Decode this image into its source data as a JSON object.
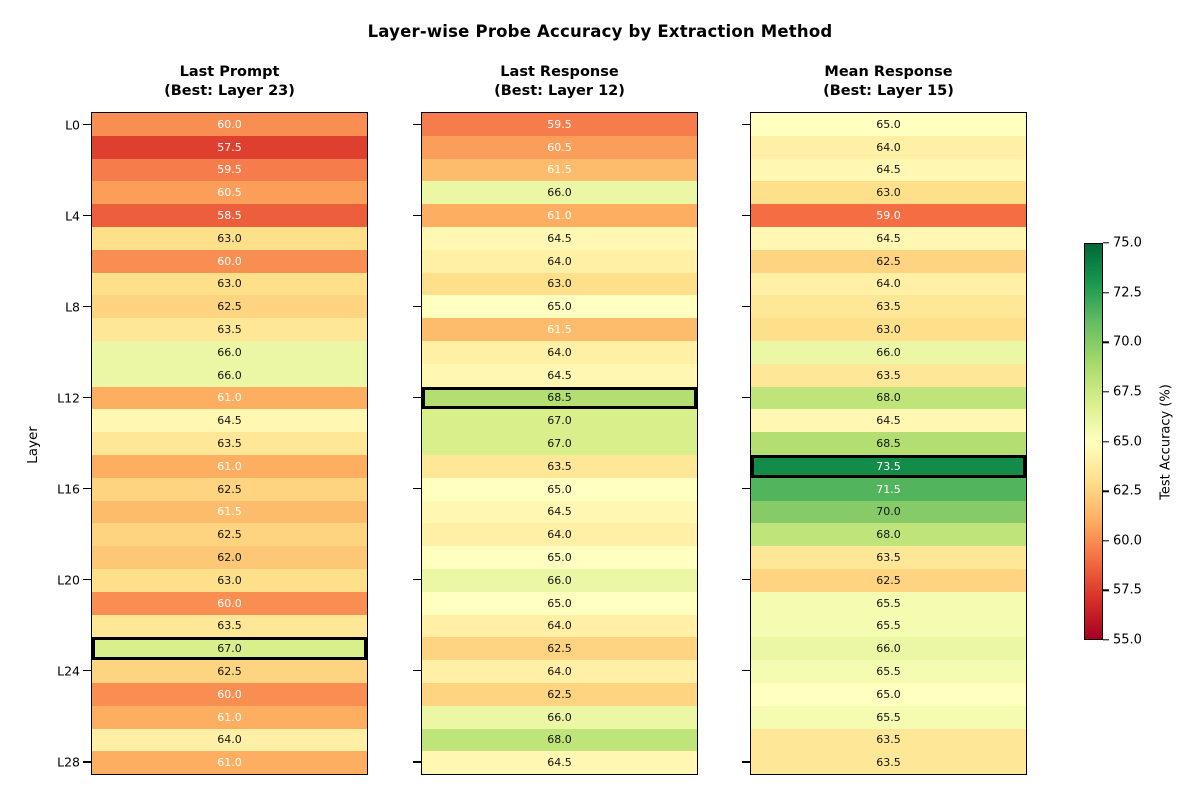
{
  "chart_data": {
    "type": "heatmap",
    "title": "Layer-wise Probe Accuracy by Extraction Method",
    "ylabel": "Layer",
    "vmin": 55.0,
    "vmax": 75.0,
    "n_layers": 29,
    "colormap": "RdYlGn",
    "colormap_stops": [
      {
        "t": 0.0,
        "color": "#a50026"
      },
      {
        "t": 0.1,
        "color": "#d73027"
      },
      {
        "t": 0.2,
        "color": "#f46d43"
      },
      {
        "t": 0.3,
        "color": "#fdae61"
      },
      {
        "t": 0.4,
        "color": "#fee08b"
      },
      {
        "t": 0.5,
        "color": "#ffffbf"
      },
      {
        "t": 0.6,
        "color": "#d9ef8b"
      },
      {
        "t": 0.7,
        "color": "#a6d96a"
      },
      {
        "t": 0.8,
        "color": "#66bd63"
      },
      {
        "t": 0.9,
        "color": "#1a9850"
      },
      {
        "t": 1.0,
        "color": "#006837"
      }
    ],
    "highlight_border_color": "#000000",
    "yticks": {
      "rows": [
        0,
        4,
        8,
        12,
        16,
        20,
        24,
        28
      ],
      "labels": [
        "L0",
        "L4",
        "L8",
        "L12",
        "L16",
        "L20",
        "L24",
        "L28"
      ]
    },
    "colorbar": {
      "label": "Test Accuracy (%)",
      "ticks": [
        75.0,
        72.5,
        70.0,
        67.5,
        65.0,
        62.5,
        60.0,
        57.5,
        55.0
      ]
    },
    "columns": [
      {
        "title": "Last Prompt",
        "subtitle": "(Best: Layer 23)",
        "best_layer": 23,
        "values": [
          60.0,
          57.5,
          59.5,
          60.5,
          58.5,
          63.0,
          60.0,
          63.0,
          62.5,
          63.5,
          66.0,
          66.0,
          61.0,
          64.5,
          63.5,
          61.0,
          62.5,
          61.5,
          62.5,
          62.0,
          63.0,
          60.0,
          63.5,
          67.0,
          62.5,
          60.0,
          61.0,
          64.0,
          61.0
        ]
      },
      {
        "title": "Last Response",
        "subtitle": "(Best: Layer 12)",
        "best_layer": 12,
        "values": [
          59.5,
          60.5,
          61.5,
          66.0,
          61.0,
          64.5,
          64.0,
          63.0,
          65.0,
          61.5,
          64.0,
          64.5,
          68.5,
          67.0,
          67.0,
          63.5,
          65.0,
          64.5,
          64.0,
          65.0,
          66.0,
          65.0,
          64.0,
          62.5,
          64.0,
          62.5,
          66.0,
          68.0,
          64.5
        ]
      },
      {
        "title": "Mean Response",
        "subtitle": "(Best: Layer 15)",
        "best_layer": 15,
        "values": [
          65.0,
          64.0,
          64.5,
          63.0,
          59.0,
          64.5,
          62.5,
          64.0,
          63.5,
          63.0,
          66.0,
          63.5,
          68.0,
          64.5,
          68.5,
          73.5,
          71.5,
          70.0,
          68.0,
          63.5,
          62.5,
          65.5,
          65.5,
          66.0,
          65.5,
          65.0,
          65.5,
          63.5,
          63.5
        ]
      }
    ]
  }
}
